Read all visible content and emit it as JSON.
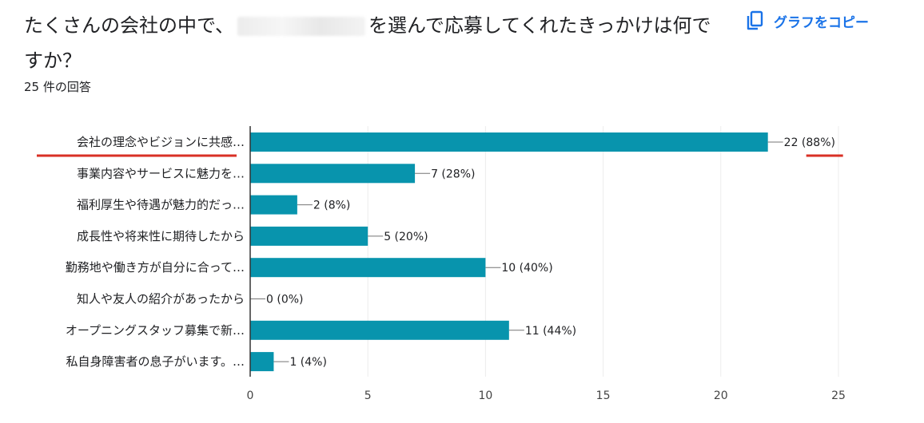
{
  "question": {
    "text_before": "たくさんの会社の中で、",
    "text_after": "を選んで応募してくれたきっかけは何ですか？"
  },
  "copy_button": {
    "label": "グラフをコピー",
    "icon": "copy-icon",
    "color": "#1a73e8"
  },
  "response_count": "25 件の回答",
  "colors": {
    "bar": "#0894ad",
    "highlight_underline": "#d93025"
  },
  "chart_data": {
    "type": "bar",
    "orientation": "horizontal",
    "title": "",
    "xlabel": "",
    "ylabel": "",
    "xlim": [
      0,
      25
    ],
    "x_ticks": [
      0,
      5,
      10,
      15,
      20,
      25
    ],
    "grid": true,
    "highlighted_category_index": 0,
    "categories": [
      "会社の理念やビジョンに共感…",
      "事業内容やサービスに魅力を…",
      "福利厚生や待遇が魅力的だっ…",
      "成長性や将来性に期待したから",
      "勤務地や働き方が自分に合って…",
      "知人や友人の紹介があったから",
      "オープニングスタッフ募集で新…",
      "私自身障害者の息子がいます。…"
    ],
    "values": [
      22,
      7,
      2,
      5,
      10,
      0,
      11,
      1
    ],
    "value_labels": [
      "22 (88%)",
      "7 (28%)",
      "2 (8%)",
      "5 (20%)",
      "10 (40%)",
      "0 (0%)",
      "11 (44%)",
      "1 (4%)"
    ]
  }
}
